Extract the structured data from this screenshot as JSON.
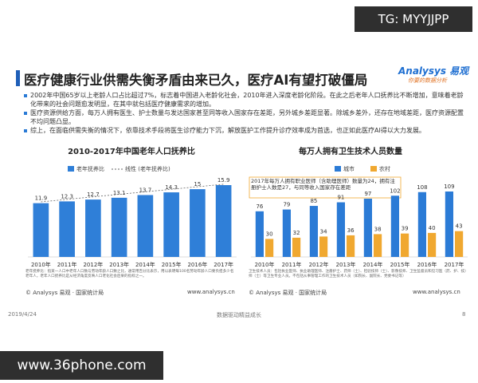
{
  "watermark_top": "TG: MYYJJPP",
  "header": {
    "title": "医疗健康行业供需失衡矛盾由来已久，医疗AI有望打破僵局",
    "logo": "Analysys 易观",
    "slogan": "你要的数据分析"
  },
  "bullets": [
    "2002年中国65岁以上老龄人口占比超过7%，标志着中国进入老龄化社会，2010年进入深度老龄化阶段。在此之后老年人口抚养比不断增加，意味着老龄化带来的社会问题愈发明显，在其中就包括医疗健康需求的增加。",
    "医疗资源供给方面，每万人拥有医生、护士数量与发达国家甚至同等收入国家存在差距，另外城乡差距显著。除城乡差外，还存在地域差距，医疗资源配置不均问题凸显。",
    "综上，在面临供需失衡的情况下，依靠技术手段将医生诊疗能力下沉，解放医护工作提升诊疗效率成为首选，也正如此医疗AI得以大力发展。"
  ],
  "chart_data": [
    {
      "type": "bar",
      "title": "2010-2017年中国老年人口抚养比",
      "categories": [
        "2010年",
        "2011年",
        "2012年",
        "2013年",
        "2014年",
        "2015年",
        "2016年",
        "2017年"
      ],
      "series": [
        {
          "name": "老年抚养比",
          "color": "#2f7fd8",
          "values": [
            11.9,
            12.3,
            12.7,
            13.1,
            13.7,
            14.3,
            15,
            15.9
          ]
        }
      ],
      "trendline": {
        "name": "线性 (老年抚养比)",
        "color": "#666666"
      },
      "footnote": "老年抚养比：指某一人口中老年人口数与劳动年龄人口数之比，通常用百分比表示，用以表明每100名劳动年龄人口要负担多少名老年人，老年人口抚养比是从经济角度反映人口老化社会后果的指标之一。",
      "source": "© Analysys 易观 · 国家统计局",
      "website": "www.analysys.cn"
    },
    {
      "type": "bar",
      "title": "每万人拥有卫生技术人员数量",
      "categories": [
        "2010年",
        "2011年",
        "2012年",
        "2013年",
        "2014年",
        "2015年",
        "2016年",
        "2017年"
      ],
      "series": [
        {
          "name": "城市",
          "color": "#2b7bd6",
          "values": [
            76,
            79,
            85,
            91,
            97,
            102,
            108,
            109
          ]
        },
        {
          "name": "农村",
          "color": "#f0a830",
          "values": [
            30,
            32,
            34,
            36,
            38,
            39,
            40,
            43
          ]
        }
      ],
      "annotation": "2017年每万人拥有职业医师（含助理医师）数量为24，拥有注册护士人数是27，与同等收入国家存在差距",
      "footnote": "卫生技术人员：包括执业医师、执业助理医师、注册护士、药师（士）、检验技师（士）、影像技师、卫生监督员和见习医（药、护、技）师（士）等卫生专业人员。不包括从事管理工作的卫生技术人员（如院长、副院长、党委书记等）",
      "source": "© Analysys 易观 · 国家统计局",
      "website": "www.analysys.cn"
    }
  ],
  "footer": {
    "date": "2019/4/24",
    "slogan": "数据驱动精益成长",
    "page": "8"
  },
  "watermark_bottom": "www.36phone.com"
}
